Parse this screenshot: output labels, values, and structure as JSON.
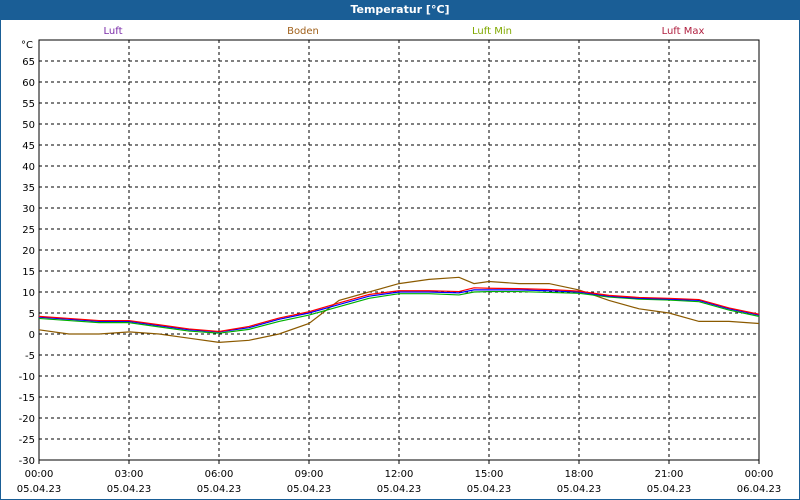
{
  "chart_data": {
    "type": "line",
    "title": "Temperatur [°C]",
    "ylabel": "°C",
    "ylim": [
      -30,
      70
    ],
    "yticks": [
      65,
      60,
      55,
      50,
      45,
      40,
      35,
      30,
      25,
      20,
      15,
      10,
      5,
      0,
      -5,
      -10,
      -15,
      -20,
      -25,
      -30
    ],
    "xlim": [
      0,
      24
    ],
    "xticks": [
      {
        "h": 0,
        "time": "00:00",
        "date": "05.04.23"
      },
      {
        "h": 3,
        "time": "03:00",
        "date": "05.04.23"
      },
      {
        "h": 6,
        "time": "06:00",
        "date": "05.04.23"
      },
      {
        "h": 9,
        "time": "09:00",
        "date": "05.04.23"
      },
      {
        "h": 12,
        "time": "12:00",
        "date": "05.04.23"
      },
      {
        "h": 15,
        "time": "15:00",
        "date": "05.04.23"
      },
      {
        "h": 18,
        "time": "18:00",
        "date": "05.04.23"
      },
      {
        "h": 21,
        "time": "21:00",
        "date": "05.04.23"
      },
      {
        "h": 24,
        "time": "00:00",
        "date": "06.04.23"
      }
    ],
    "grid": true,
    "legend_placement": "top",
    "x": [
      0,
      1,
      2,
      3,
      4,
      5,
      6,
      7,
      8,
      9,
      10,
      11,
      12,
      13,
      14,
      14.5,
      15,
      16,
      17,
      18,
      19,
      20,
      21,
      22,
      23,
      24
    ],
    "series": [
      {
        "name": "Luft",
        "label_color": "#7a2aa8",
        "color": "#0000ff",
        "values": [
          4,
          3.5,
          3,
          3,
          2,
          1,
          0.5,
          1.5,
          3.5,
          5,
          7,
          9,
          10,
          10,
          9.8,
          10.5,
          10.5,
          10.5,
          10.3,
          10,
          9,
          8.5,
          8.3,
          8,
          6,
          4.5
        ]
      },
      {
        "name": "Boden",
        "label_color": "#a0601a",
        "color": "#8b5a00",
        "values": [
          1,
          0,
          0,
          0.5,
          0,
          -1,
          -2,
          -1.5,
          0,
          2.5,
          8,
          10,
          12,
          13,
          13.5,
          12,
          12.5,
          12,
          12,
          10.5,
          8,
          6,
          5,
          3,
          3,
          2.5
        ]
      },
      {
        "name": "Luft Min",
        "label_color": "#80a800",
        "color": "#00b000",
        "values": [
          3.7,
          3.2,
          2.7,
          2.7,
          1.7,
          0.7,
          0.2,
          1.1,
          3,
          4.5,
          6.5,
          8.5,
          9.6,
          9.6,
          9.3,
          10,
          10.1,
          10.1,
          9.9,
          9.7,
          8.8,
          8.3,
          8.1,
          7.7,
          5.7,
          4.2
        ]
      },
      {
        "name": "Luft Max",
        "label_color": "#b02040",
        "color": "#ff0000",
        "values": [
          4.2,
          3.7,
          3.2,
          3.2,
          2.2,
          1.2,
          0.6,
          1.8,
          3.8,
          5.3,
          7.4,
          9.4,
          10.3,
          10.3,
          10.1,
          11,
          10.9,
          10.8,
          10.6,
          10.2,
          9.2,
          8.7,
          8.5,
          8.2,
          6.2,
          4.7
        ]
      }
    ]
  }
}
